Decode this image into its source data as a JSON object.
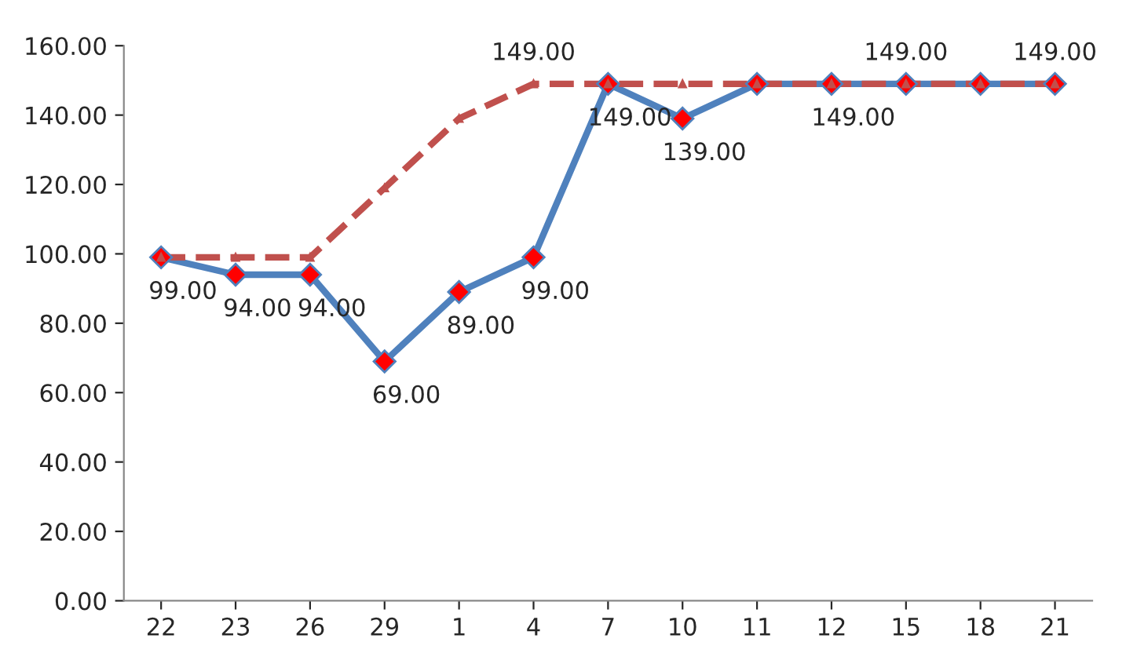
{
  "chart_data": {
    "type": "line",
    "categories": [
      "22",
      "23",
      "26",
      "29",
      "1",
      "4",
      "7",
      "10",
      "11",
      "12",
      "15",
      "18",
      "21"
    ],
    "series": [
      {
        "color": "#4f81bd",
        "line_style": "solid",
        "marker": "diamond",
        "values": [
          99,
          94,
          94,
          69,
          89,
          99,
          149,
          139,
          149,
          149,
          149,
          149,
          149
        ],
        "value_labels": [
          "99.00",
          "94.00",
          "94.00",
          "69.00",
          "89.00",
          "99.00",
          "149.00",
          "139.00",
          null,
          "149.00",
          "149.00",
          null,
          "149.00"
        ]
      },
      {
        "color": "#c0504d",
        "line_style": "dashed",
        "marker": "triangle",
        "values": [
          99,
          99,
          99,
          119,
          139,
          149,
          149,
          149,
          149,
          149,
          149,
          149,
          149
        ],
        "value_labels": [
          null,
          null,
          null,
          null,
          null,
          "149.00",
          null,
          null,
          null,
          null,
          null,
          null,
          null
        ]
      }
    ],
    "ylim": [
      0,
      160
    ],
    "yticks": [
      {
        "value": 0,
        "label": "0.00"
      },
      {
        "value": 20,
        "label": "20.00"
      },
      {
        "value": 40,
        "label": "40.00"
      },
      {
        "value": 60,
        "label": "60.00"
      },
      {
        "value": 80,
        "label": "80.00"
      },
      {
        "value": 100,
        "label": "100.00"
      },
      {
        "value": 120,
        "label": "120.00"
      },
      {
        "value": 140,
        "label": "140.00"
      },
      {
        "value": 160,
        "label": "160.00"
      }
    ],
    "grid": false
  }
}
